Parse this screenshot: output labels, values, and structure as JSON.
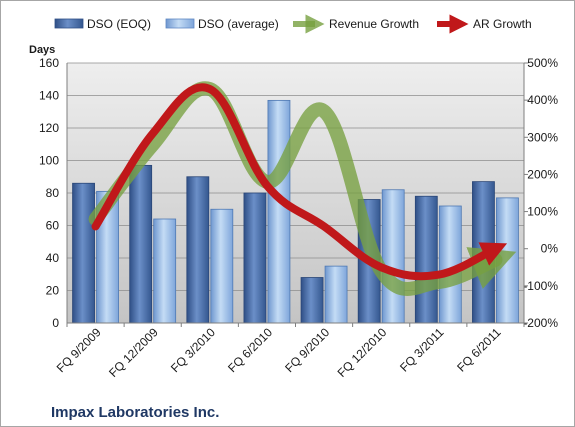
{
  "chart_data": {
    "type": "bar",
    "ylabel": "Days",
    "categories": [
      "FQ 9/2009",
      "FQ 12/2009",
      "FQ 3/2010",
      "FQ 6/2010",
      "FQ 9/2010",
      "FQ 12/2010",
      "FQ 3/2011",
      "FQ 6/2011"
    ],
    "ylim": [
      0,
      160
    ],
    "yticks": [
      0,
      20,
      40,
      60,
      80,
      100,
      120,
      140,
      160
    ],
    "y2lim": [
      -200,
      500
    ],
    "y2ticks": [
      -200,
      -100,
      0,
      100,
      200,
      300,
      400,
      500
    ],
    "y2tick_labels": [
      "-200%",
      "-100%",
      "0%",
      "100%",
      "200%",
      "300%",
      "400%",
      "500%"
    ],
    "grid": true,
    "legend_position": "top",
    "series": [
      {
        "name": "DSO (EOQ)",
        "type": "bar",
        "axis": "left",
        "color": "#4a6ea8",
        "values": [
          86,
          97,
          90,
          80,
          28,
          76,
          78,
          87
        ]
      },
      {
        "name": "DSO (average)",
        "type": "bar",
        "axis": "left",
        "color": "#8fb4e3",
        "values": [
          81,
          64,
          70,
          137,
          35,
          82,
          72,
          77
        ]
      },
      {
        "name": "Revenue Growth",
        "type": "line",
        "axis": "right",
        "color": "#77a040",
        "values": [
          80,
          280,
          430,
          180,
          370,
          -60,
          -90,
          -30
        ]
      },
      {
        "name": "AR Growth",
        "type": "line",
        "axis": "right",
        "color": "#c0181a",
        "values": [
          60,
          310,
          430,
          170,
          60,
          -50,
          -70,
          0
        ]
      }
    ]
  },
  "footer": {
    "company": "Impax Laboratories Inc."
  }
}
